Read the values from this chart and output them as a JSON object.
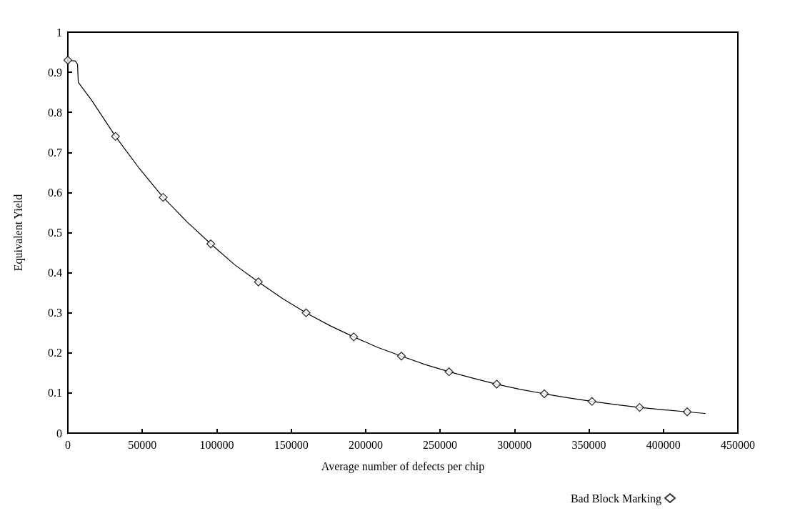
{
  "chart_data": {
    "type": "line",
    "xlabel": "Average number of defects per chip",
    "ylabel": "Equivalent Yield",
    "xlim": [
      0,
      450000
    ],
    "ylim": [
      0,
      1
    ],
    "xticks": [
      0,
      50000,
      100000,
      150000,
      200000,
      250000,
      300000,
      350000,
      400000,
      450000
    ],
    "yticks": [
      0,
      0.1,
      0.2,
      0.3,
      0.4,
      0.5,
      0.6,
      0.7,
      0.8,
      0.9,
      1
    ],
    "grid": false,
    "legend": "bottom right",
    "series": [
      {
        "color": "#000000",
        "marker": "none",
        "line_style": "solid",
        "x": [
          0,
          5000,
          6500,
          7000,
          16000,
          32000,
          48000,
          64000,
          80000,
          96000,
          112000,
          128000,
          144000,
          160000,
          176000,
          192000,
          208000,
          224000,
          240000,
          256000,
          272000,
          288000,
          304000,
          320000,
          336000,
          352000,
          368000,
          384000,
          400000,
          416000,
          428000
        ],
        "values": [
          0.93,
          0.928,
          0.92,
          0.875,
          0.83,
          0.74,
          0.66,
          0.588,
          0.527,
          0.472,
          0.42,
          0.377,
          0.336,
          0.3,
          0.268,
          0.24,
          0.214,
          0.192,
          0.171,
          0.153,
          0.137,
          0.122,
          0.109,
          0.098,
          0.088,
          0.079,
          0.071,
          0.064,
          0.058,
          0.053,
          0.049
        ]
      },
      {
        "type": "scatter",
        "name": "Bad Block Marking",
        "color": "#000000",
        "marker": "diamond",
        "x": [
          0,
          32000,
          64000,
          96000,
          128000,
          160000,
          192000,
          224000,
          256000,
          288000,
          320000,
          352000,
          384000,
          416000
        ],
        "values": [
          0.93,
          0.74,
          0.588,
          0.472,
          0.377,
          0.3,
          0.24,
          0.192,
          0.153,
          0.122,
          0.098,
          0.079,
          0.064,
          0.053
        ]
      }
    ]
  }
}
